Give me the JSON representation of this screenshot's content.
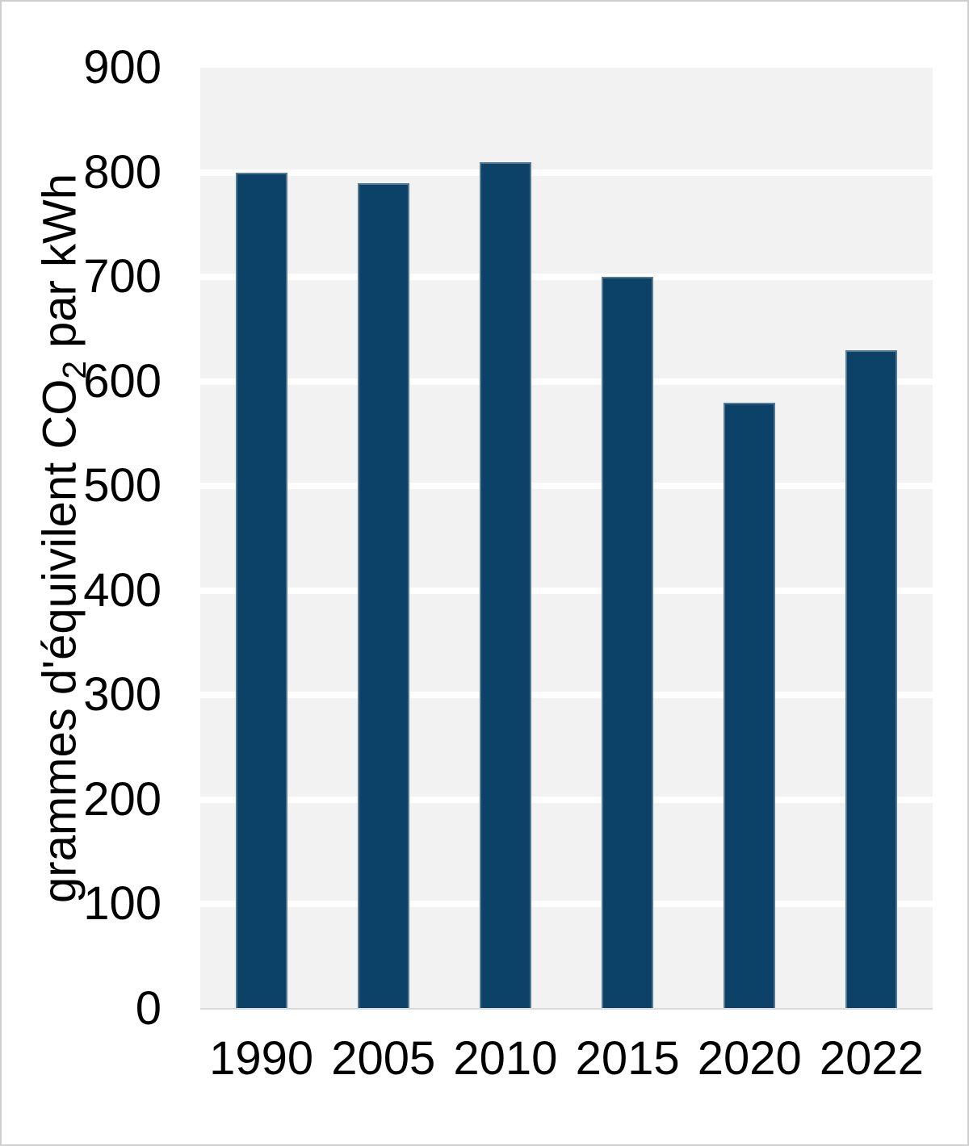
{
  "page": {
    "background": "#ffffff",
    "border_color": "#cfcfcf"
  },
  "chart_data": {
    "type": "bar",
    "categories": [
      "1990",
      "2005",
      "2010",
      "2015",
      "2020",
      "2022"
    ],
    "values": [
      800,
      790,
      810,
      700,
      580,
      630
    ],
    "ylabel": "grammes d'équivilent CO2 par kWh",
    "ylabel_parts": {
      "pre": "grammes d'équivilent CO",
      "sub": "2",
      "post": " par kWh"
    },
    "xlabel": "",
    "yticks": [
      0,
      100,
      200,
      300,
      400,
      500,
      600,
      700,
      800,
      900
    ],
    "ylim": [
      0,
      900
    ],
    "grid": true,
    "gridline_values": [
      100,
      200,
      300,
      400,
      500,
      600,
      700,
      800
    ],
    "legend_position": "none",
    "colors": {
      "bar_fill": "#0c4267",
      "bar_border": "#567992",
      "plot_background": "#f2f2f2",
      "gridline": "#ffffff",
      "axis_line": "#d9d9d9",
      "text": "#000000"
    }
  }
}
